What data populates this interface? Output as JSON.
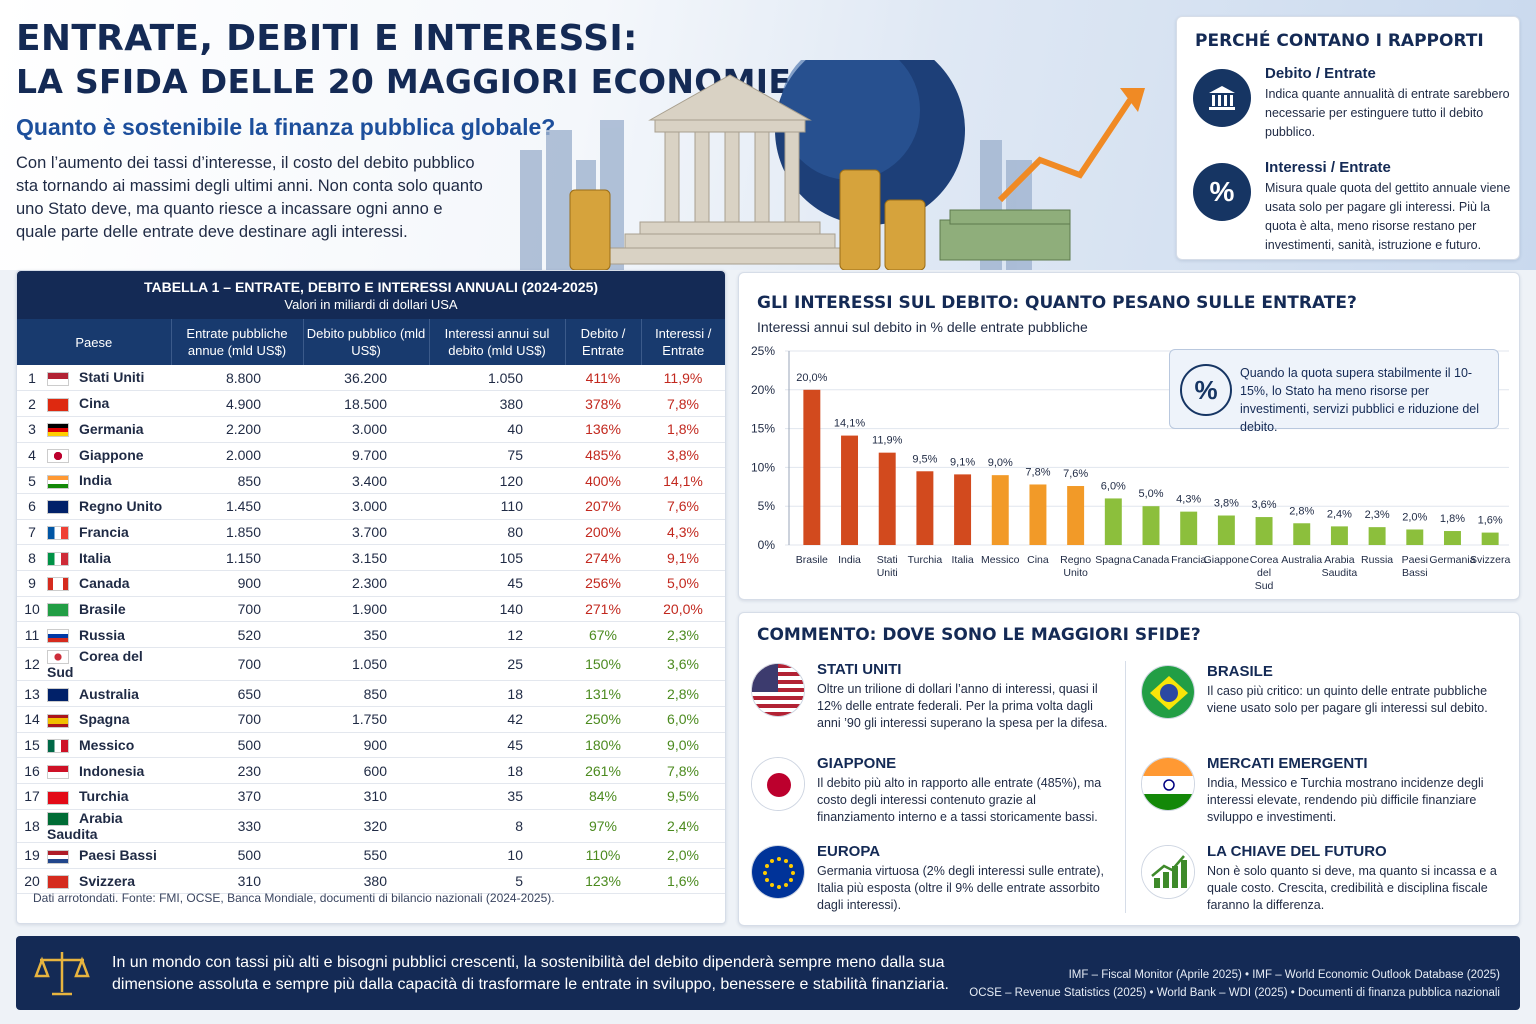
{
  "header": {
    "title_line1": "ENTRATE, DEBITI E INTERESSI:",
    "title_line2": "LA SFIDA DELLE 20 MAGGIORI ECONOMIE",
    "subtitle": "Quanto è sostenibile la finanza pubblica globale?",
    "intro": "Con l’aumento dei tassi d’interesse, il costo del debito pubblico sta tornando ai massimi degli ultimi anni. Non conta solo quanto uno Stato deve, ma quanto riesce a incassare ogni anno e quale parte delle entrate deve destinare agli interessi."
  },
  "why": {
    "title": "PERCHÉ CONTANO I RAPPORTI",
    "items": [
      {
        "icon": "bank-icon",
        "title": "Debito / Entrate",
        "text": "Indica quante annualità di entrate sarebbero necessarie per estinguere tutto il debito pubblico."
      },
      {
        "icon": "percent-icon",
        "title": "Interessi / Entrate",
        "text": "Misura quale quota del gettito annuale viene usata solo per pagare gli interessi. Più la quota è alta, meno risorse restano per investimenti, sanità, istruzione e futuro."
      }
    ]
  },
  "table": {
    "title": "TABELLA 1 – ENTRATE, DEBITO E INTERESSI ANNUALI (2024-2025)",
    "subtitle": "Valori in miliardi di dollari USA",
    "headers": [
      "Paese",
      "Entrate pubbliche annue (mld US$)",
      "Debito pubblico (mld US$)",
      "Interessi annui sul debito (mld US$)",
      "Debito / Entrate",
      "Interessi / Entrate"
    ],
    "rows": [
      {
        "rank": "1",
        "country": "Stati Uniti",
        "revenue": "8.800",
        "debt": "36.200",
        "interest": "1.050",
        "debt_ratio": "411%",
        "int_ratio": "11,9%",
        "status": "red"
      },
      {
        "rank": "2",
        "country": "Cina",
        "revenue": "4.900",
        "debt": "18.500",
        "interest": "380",
        "debt_ratio": "378%",
        "int_ratio": "7,8%",
        "status": "red"
      },
      {
        "rank": "3",
        "country": "Germania",
        "revenue": "2.200",
        "debt": "3.000",
        "interest": "40",
        "debt_ratio": "136%",
        "int_ratio": "1,8%",
        "status": "red"
      },
      {
        "rank": "4",
        "country": "Giappone",
        "revenue": "2.000",
        "debt": "9.700",
        "interest": "75",
        "debt_ratio": "485%",
        "int_ratio": "3,8%",
        "status": "red"
      },
      {
        "rank": "5",
        "country": "India",
        "revenue": "850",
        "debt": "3.400",
        "interest": "120",
        "debt_ratio": "400%",
        "int_ratio": "14,1%",
        "status": "red"
      },
      {
        "rank": "6",
        "country": "Regno Unito",
        "revenue": "1.450",
        "debt": "3.000",
        "interest": "110",
        "debt_ratio": "207%",
        "int_ratio": "7,6%",
        "status": "red"
      },
      {
        "rank": "7",
        "country": "Francia",
        "revenue": "1.850",
        "debt": "3.700",
        "interest": "80",
        "debt_ratio": "200%",
        "int_ratio": "4,3%",
        "status": "red"
      },
      {
        "rank": "8",
        "country": "Italia",
        "revenue": "1.150",
        "debt": "3.150",
        "interest": "105",
        "debt_ratio": "274%",
        "int_ratio": "9,1%",
        "status": "red"
      },
      {
        "rank": "9",
        "country": "Canada",
        "revenue": "900",
        "debt": "2.300",
        "interest": "45",
        "debt_ratio": "256%",
        "int_ratio": "5,0%",
        "status": "red"
      },
      {
        "rank": "10",
        "country": "Brasile",
        "revenue": "700",
        "debt": "1.900",
        "interest": "140",
        "debt_ratio": "271%",
        "int_ratio": "20,0%",
        "status": "red"
      },
      {
        "rank": "11",
        "country": "Russia",
        "revenue": "520",
        "debt": "350",
        "interest": "12",
        "debt_ratio": "67%",
        "int_ratio": "2,3%",
        "status": "green"
      },
      {
        "rank": "12",
        "country": "Corea del Sud",
        "revenue": "700",
        "debt": "1.050",
        "interest": "25",
        "debt_ratio": "150%",
        "int_ratio": "3,6%",
        "status": "green"
      },
      {
        "rank": "13",
        "country": "Australia",
        "revenue": "650",
        "debt": "850",
        "interest": "18",
        "debt_ratio": "131%",
        "int_ratio": "2,8%",
        "status": "green"
      },
      {
        "rank": "14",
        "country": "Spagna",
        "revenue": "700",
        "debt": "1.750",
        "interest": "42",
        "debt_ratio": "250%",
        "int_ratio": "6,0%",
        "status": "green"
      },
      {
        "rank": "15",
        "country": "Messico",
        "revenue": "500",
        "debt": "900",
        "interest": "45",
        "debt_ratio": "180%",
        "int_ratio": "9,0%",
        "status": "green"
      },
      {
        "rank": "16",
        "country": "Indonesia",
        "revenue": "230",
        "debt": "600",
        "interest": "18",
        "debt_ratio": "261%",
        "int_ratio": "7,8%",
        "status": "green"
      },
      {
        "rank": "17",
        "country": "Turchia",
        "revenue": "370",
        "debt": "310",
        "interest": "35",
        "debt_ratio": "84%",
        "int_ratio": "9,5%",
        "status": "green"
      },
      {
        "rank": "18",
        "country": "Arabia Saudita",
        "revenue": "330",
        "debt": "320",
        "interest": "8",
        "debt_ratio": "97%",
        "int_ratio": "2,4%",
        "status": "green"
      },
      {
        "rank": "19",
        "country": "Paesi Bassi",
        "revenue": "500",
        "debt": "550",
        "interest": "10",
        "debt_ratio": "110%",
        "int_ratio": "2,0%",
        "status": "green"
      },
      {
        "rank": "20",
        "country": "Svizzera",
        "revenue": "310",
        "debt": "380",
        "interest": "5",
        "debt_ratio": "123%",
        "int_ratio": "1,6%",
        "status": "green"
      }
    ],
    "note": "Dati arrotondati. Fonte: FMI, OCSE, Banca Mondiale, documenti di bilancio nazionali (2024-2025)."
  },
  "chart": {
    "heading": "GLI INTERESSI SUL DEBITO: QUANTO PESANO SULLE ENTRATE?",
    "subheading": "Interessi annui sul debito in % delle entrate pubbliche",
    "note": "Quando la quota supera stabilmente il 10-15%, lo Stato ha meno risorse per investimenti, servizi pubblici e riduzione del debito."
  },
  "chart_data": {
    "type": "bar",
    "categories": [
      "Brasile",
      "India",
      "Stati Uniti",
      "Turchia",
      "Italia",
      "Messico",
      "Cina",
      "Regno Unito",
      "Spagna",
      "Canada",
      "Francia",
      "Giappone",
      "Corea del Sud",
      "Australia",
      "Arabia Saudita",
      "Russia",
      "Paesi Bassi",
      "Germania",
      "Svizzera"
    ],
    "values": [
      20.0,
      14.1,
      11.9,
      9.5,
      9.1,
      9.0,
      7.8,
      7.6,
      6.0,
      5.0,
      4.3,
      3.8,
      3.6,
      2.8,
      2.4,
      2.3,
      2.0,
      1.8,
      1.6
    ],
    "value_labels": [
      "20,0%",
      "14,1%",
      "11,9%",
      "9,5%",
      "9,1%",
      "9,0%",
      "7,8%",
      "7,6%",
      "6,0%",
      "5,0%",
      "4,3%",
      "3,8%",
      "3,6%",
      "2,8%",
      "2,4%",
      "2,3%",
      "2,0%",
      "1,8%",
      "1,6%"
    ],
    "ylim": [
      0,
      25
    ],
    "yticks": [
      "0%",
      "5%",
      "10%",
      "15%",
      "20%",
      "25%"
    ],
    "grid": true,
    "colors": {
      "high": "#d24a1e",
      "mid": "#f29a28",
      "low": "#8cbf3c"
    }
  },
  "comment": {
    "heading": "COMMENTO: DOVE SONO LE MAGGIORI SFIDE?",
    "items": [
      {
        "icon": "usa-flag-icon",
        "title": "STATI UNITI",
        "text": "Oltre un trilione di dollari l’anno di interessi, quasi il 12% delle entrate federali. Per la prima volta dagli anni ’90 gli interessi superano la spesa per la difesa."
      },
      {
        "icon": "japan-flag-icon",
        "title": "GIAPPONE",
        "text": "Il debito più alto in rapporto alle entrate (485%), ma costo degli interessi contenuto grazie al finanziamento interno e a tassi storicamente bassi."
      },
      {
        "icon": "eu-flag-icon",
        "title": "EUROPA",
        "text": "Germania virtuosa (2% degli interessi sulle entrate), Italia più esposta (oltre il 9% delle entrate assorbito dagli interessi)."
      },
      {
        "icon": "brazil-flag-icon",
        "title": "BRASILE",
        "text": "Il caso più critico: un quinto delle entrate pubbliche viene usato solo per pagare gli interessi sul debito."
      },
      {
        "icon": "india-flag-icon",
        "title": "MERCATI EMERGENTI",
        "text": "India, Messico e Turchia mostrano incidenze degli interessi elevate, rendendo più difficile finanziare sviluppo e investimenti."
      },
      {
        "icon": "growth-chart-icon",
        "title": "LA CHIAVE DEL FUTURO",
        "text": "Non è solo quanto si deve, ma quanto si incassa e a quale costo. Crescita, credibilità e disciplina fiscale faranno la differenza."
      }
    ]
  },
  "footer": {
    "message": "In un mondo con tassi più alti e bisogni pubblici crescenti, la sostenibilità del debito dipenderà sempre meno dalla sua dimensione assoluta e sempre più dalla capacità di trasformare le entrate in sviluppo, benessere e stabilità finanziaria.",
    "sources_line1": "IMF – Fiscal Monitor (Aprile 2025)  •  IMF – World Economic Outlook Database (2025)",
    "sources_line2": "OCSE – Revenue Statistics (2025)  •  World Bank – WDI (2025)  •  Documenti di finanza pubblica nazionali"
  }
}
